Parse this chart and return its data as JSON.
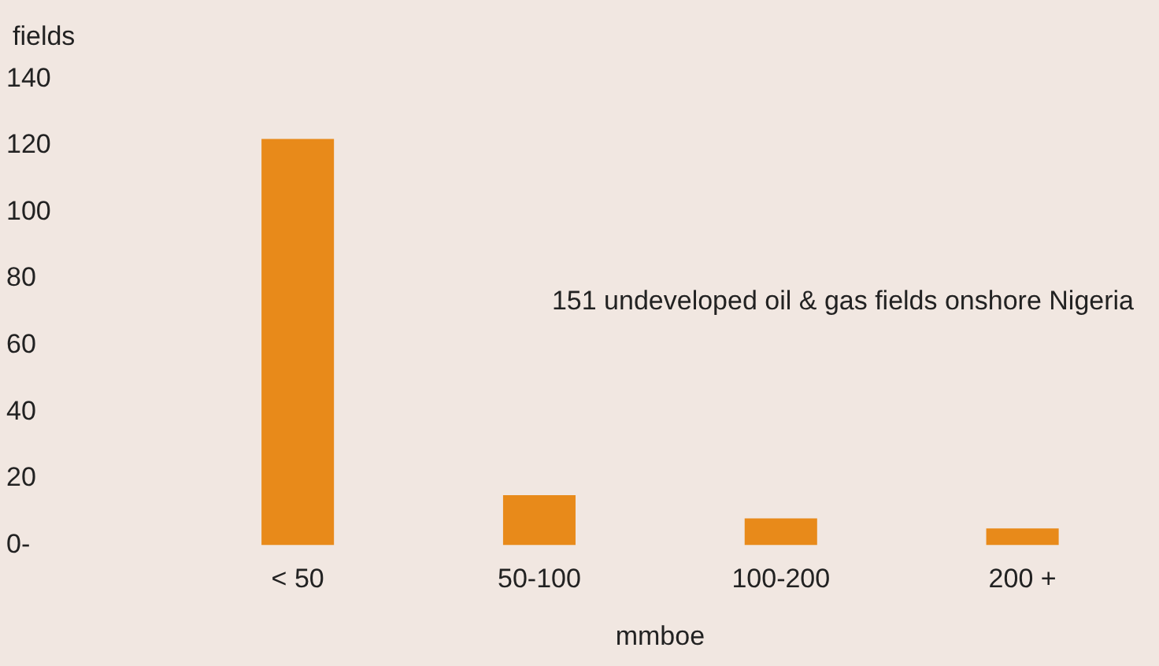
{
  "chart_data": {
    "type": "bar",
    "ylabel": "fields",
    "xlabel": "mmboe",
    "annotations": [
      "151 undeveloped oil & gas fields onshore Nigeria"
    ],
    "categories": [
      "< 50",
      "50-100",
      "100-200",
      "200 +"
    ],
    "values": [
      122,
      15,
      8,
      5
    ],
    "color": "#e88a1a",
    "ylim": [
      0,
      140
    ],
    "yticks": [
      {
        "value": 0,
        "label": "0-"
      },
      20,
      40,
      60,
      80,
      100,
      120,
      140
    ],
    "grid": false,
    "legend": false
  }
}
